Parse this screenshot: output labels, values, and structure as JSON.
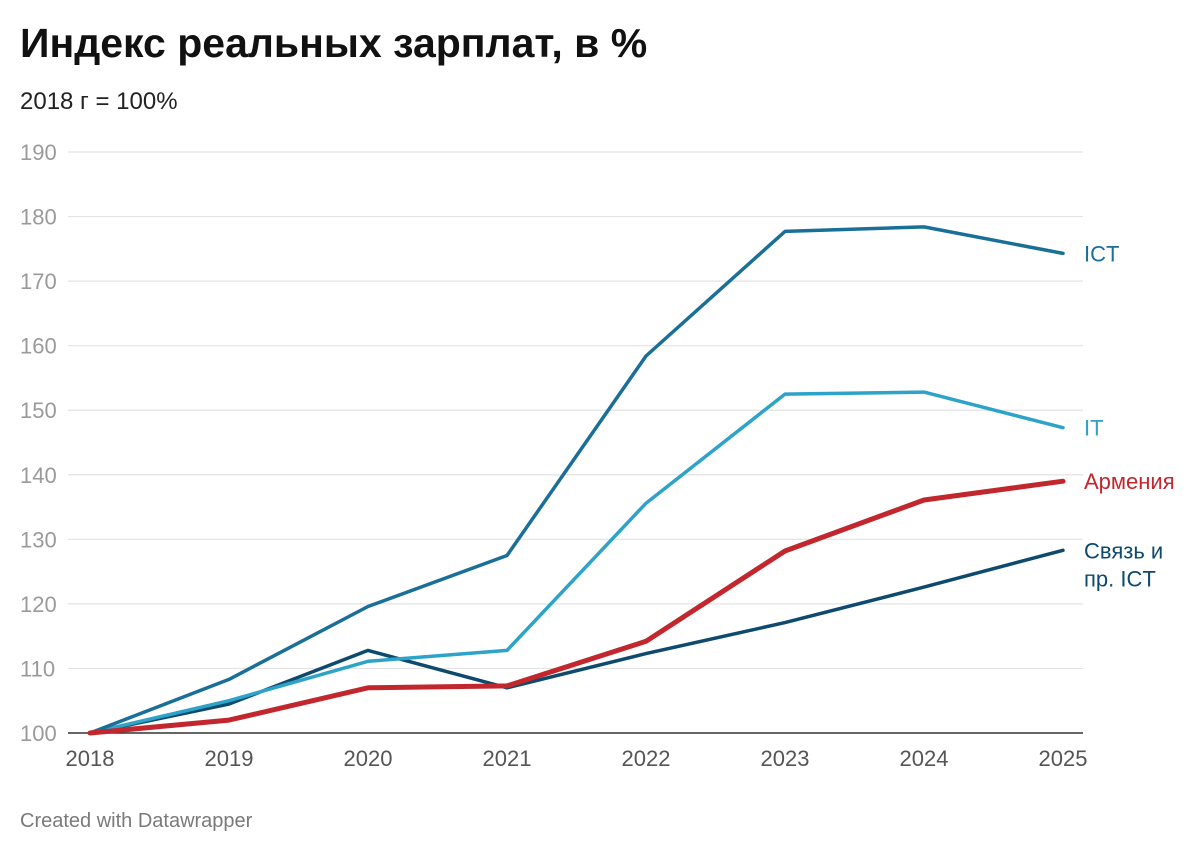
{
  "header": {
    "title": "Индекс реальных зарплат, в %",
    "subtitle": "2018 г = 100%"
  },
  "footer": {
    "credit": "Created with Datawrapper"
  },
  "chart_data": {
    "type": "line",
    "title": "Индекс реальных зарплат, в %",
    "subtitle": "2018 г = 100%",
    "xlabel": "",
    "ylabel": "",
    "x": [
      2018,
      2019,
      2020,
      2021,
      2022,
      2023,
      2024,
      2025
    ],
    "ylim": [
      100,
      190
    ],
    "yticks": [
      100,
      110,
      120,
      130,
      140,
      150,
      160,
      170,
      180,
      190
    ],
    "grid": true,
    "legend": "direct labels at right end of lines",
    "series": [
      {
        "name": "ICT",
        "label_lines": [
          "ICT"
        ],
        "color": "#1a6f99",
        "values": [
          100,
          108.3,
          119.6,
          127.5,
          158.4,
          177.7,
          178.4,
          174.3
        ]
      },
      {
        "name": "IT",
        "label_lines": [
          "IT"
        ],
        "color": "#2ea3c9",
        "values": [
          100,
          105.0,
          111.1,
          112.8,
          135.6,
          152.5,
          152.8,
          147.3
        ]
      },
      {
        "name": "Армения",
        "label_lines": [
          "Армения"
        ],
        "color": "#c1272d",
        "values": [
          100,
          102.0,
          107.0,
          107.3,
          114.2,
          128.2,
          136.1,
          139.0
        ]
      },
      {
        "name": "Связь и пр. ICT",
        "label_lines": [
          "Связь и",
          "пр. ICT"
        ],
        "color": "#0e4a6e",
        "values": [
          100,
          104.5,
          112.8,
          107.0,
          112.3,
          117.1,
          122.6,
          128.3
        ]
      }
    ]
  }
}
